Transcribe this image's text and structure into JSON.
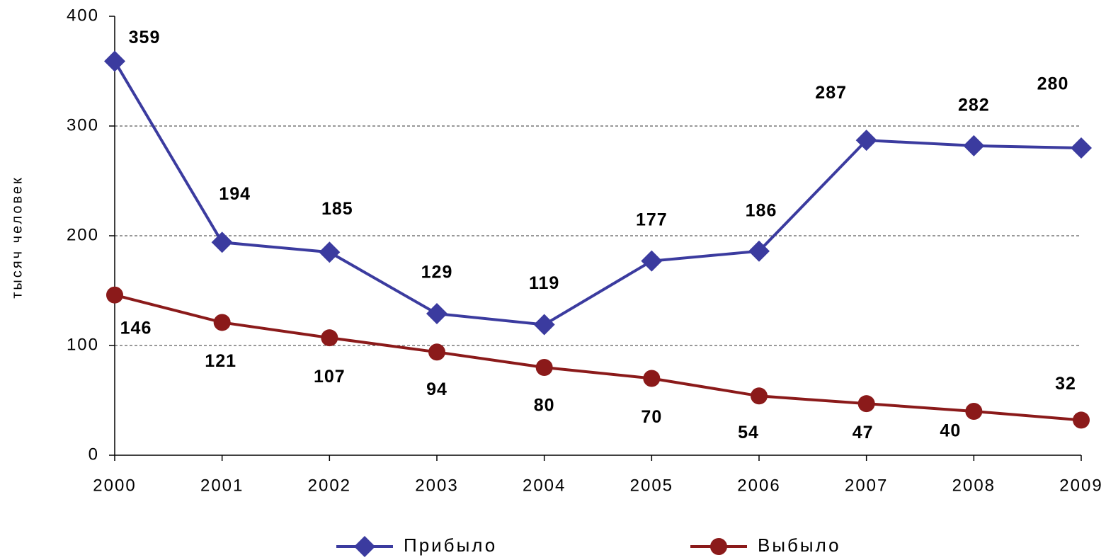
{
  "chart_data": {
    "type": "line",
    "y_label": "тысяч человек",
    "categories": [
      "2000",
      "2001",
      "2002",
      "2003",
      "2004",
      "2005",
      "2006",
      "2007",
      "2008",
      "2009"
    ],
    "series": [
      {
        "name": "Прибыло",
        "color": "#3b3b9f",
        "marker": "diamond",
        "values": [
          359,
          194,
          185,
          129,
          119,
          177,
          186,
          287,
          282,
          280
        ]
      },
      {
        "name": "Выбыло",
        "color": "#8b1a1a",
        "marker": "circle",
        "values": [
          146,
          121,
          107,
          94,
          80,
          70,
          54,
          47,
          40,
          32
        ]
      }
    ],
    "ylim": [
      0,
      400
    ],
    "yticks": [
      0,
      100,
      200,
      300,
      400
    ],
    "grid": true,
    "legend": "bottom"
  }
}
